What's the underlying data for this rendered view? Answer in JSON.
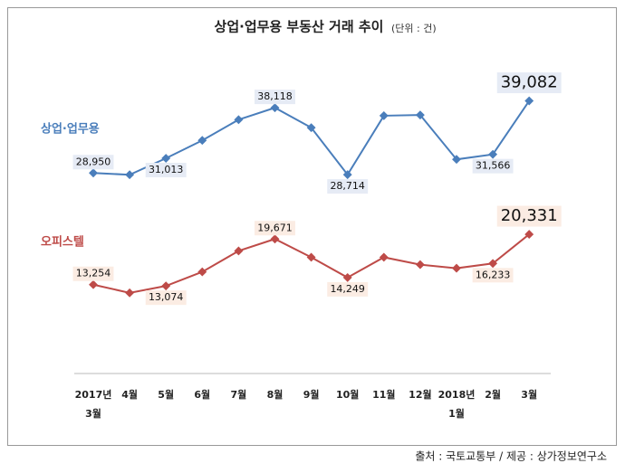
{
  "chart_data": {
    "type": "line",
    "title": "상업·업무용 부동산 거래 추이",
    "subtitle": "(단위 : 건)",
    "source": "출처 : 국토교통부 / 제공 : 상가정보연구소",
    "categories": [
      "2017년\n3월",
      "4월",
      "5월",
      "6월",
      "7월",
      "8월",
      "9월",
      "10월",
      "11월",
      "12월",
      "2018년\n1월",
      "2월",
      "3월"
    ],
    "ylim": [
      0,
      45000
    ],
    "series": [
      {
        "name": "상업·업무용",
        "color": "#4a7ebb",
        "values": [
          28950,
          28700,
          31013,
          33530,
          36440,
          38118,
          35320,
          28714,
          37000,
          37100,
          30860,
          31566,
          39082
        ],
        "value_labels": [
          "28,950",
          null,
          "31,013",
          null,
          null,
          "38,118",
          null,
          "28,714",
          null,
          null,
          null,
          "31,566",
          "39,082"
        ]
      },
      {
        "name": "오피스텔",
        "color": "#be4b48",
        "values": [
          13254,
          12100,
          13074,
          15050,
          17990,
          19671,
          17100,
          14249,
          17100,
          16070,
          15560,
          16233,
          20331
        ],
        "value_labels": [
          "13,254",
          null,
          "13,074",
          null,
          null,
          "19,671",
          null,
          "14,249",
          null,
          null,
          null,
          "16,233",
          "20,331"
        ]
      }
    ]
  }
}
